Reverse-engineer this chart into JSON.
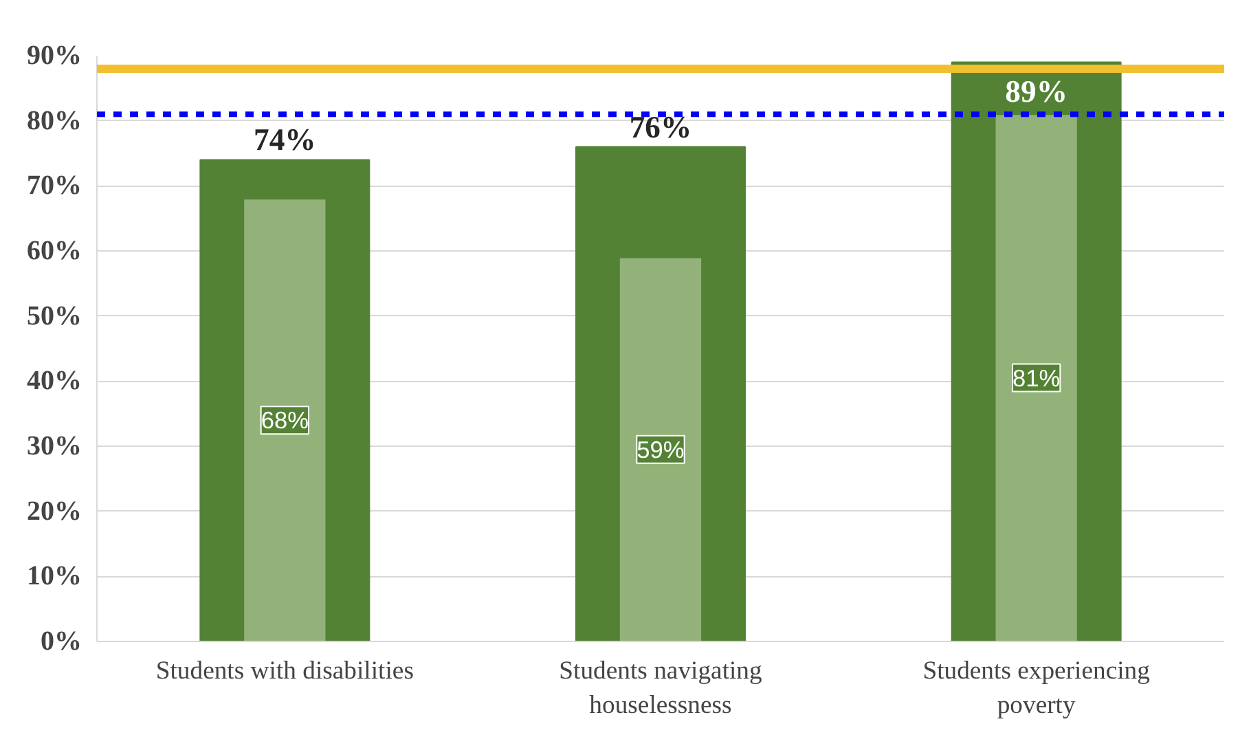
{
  "chart_data": {
    "type": "bar",
    "categories": [
      "Students with disabilities",
      "Students navigating houselessness",
      "Students experiencing poverty"
    ],
    "series": [
      {
        "color": "#548235",
        "values": [
          74,
          76,
          89
        ],
        "value_labels": [
          "74%",
          "76%",
          "89%"
        ]
      },
      {
        "color": "#93b27a",
        "values": [
          68,
          59,
          81
        ],
        "value_labels": [
          "68%",
          "59%",
          "81%"
        ]
      }
    ],
    "ylim": [
      0,
      90
    ],
    "yticks": [
      {
        "value": 0,
        "label": "0%"
      },
      {
        "value": 10,
        "label": "10%"
      },
      {
        "value": 20,
        "label": "20%"
      },
      {
        "value": 30,
        "label": "30%"
      },
      {
        "value": 40,
        "label": "40%"
      },
      {
        "value": 50,
        "label": "50%"
      },
      {
        "value": 60,
        "label": "60%"
      },
      {
        "value": 70,
        "label": "70%"
      },
      {
        "value": 80,
        "label": "80%"
      },
      {
        "value": 90,
        "label": "90%"
      }
    ],
    "ref_lines": [
      {
        "axis": "y",
        "value": 88,
        "color": "#f0c02e",
        "line_style": "solid"
      },
      {
        "axis": "y",
        "value": 81,
        "color": "#0000ff",
        "line_style": "dashed"
      }
    ],
    "grid": "y"
  }
}
